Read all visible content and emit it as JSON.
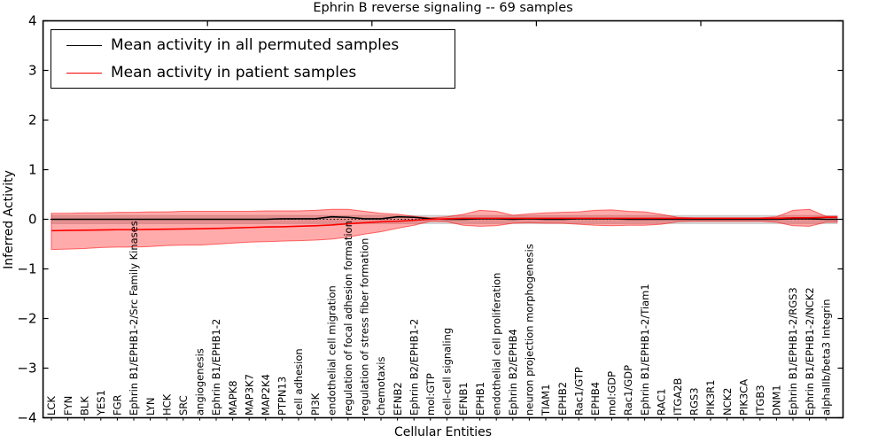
{
  "chart_data": {
    "type": "line",
    "title": "Ephrin B reverse signaling -- 69 samples",
    "xlabel": "Cellular Entities",
    "ylabel": "Inferred Activity",
    "ylim": [
      -4,
      4
    ],
    "yticks": [
      "4",
      "3",
      "2",
      "1",
      "0",
      "−1",
      "−2",
      "−3",
      "−4"
    ],
    "grid": false,
    "legend_position": "upper left",
    "zero_line_style": "dotted",
    "categories": [
      "LCK",
      "FYN",
      "BLK",
      "YES1",
      "FGR",
      "Ephrin B1/EPHB1-2/Src Family Kinases",
      "LYN",
      "HCK",
      "SRC",
      "angiogenesis",
      "Ephrin B1/EPHB1-2",
      "MAPK8",
      "MAP3K7",
      "MAP2K4",
      "PTPN13",
      "cell adhesion",
      "PI3K",
      "endothelial cell migration",
      "regulation of focal adhesion formation",
      "regulation of stress fiber formation",
      "chemotaxis",
      "EFNB2",
      "Ephrin B2/EPHB1-2",
      "mol:GTP",
      "cell-cell signaling",
      "EFNB1",
      "EPHB1",
      "endothelial cell proliferation",
      "Ephrin B2/EPHB4",
      "neuron projection morphogenesis",
      "TIAM1",
      "EPHB2",
      "Rac1/GTP",
      "EPHB4",
      "mol:GDP",
      "Rac1/GDP",
      "Ephrin B1/EPHB1-2/Tiam1",
      "RAC1",
      "ITGA2B",
      "RGS3",
      "PIK3R1",
      "NCK2",
      "PIK3CA",
      "ITGB3",
      "DNM1",
      "Ephrin B1/EPHB1-2/RGS3",
      "Ephrin B1/EPHB1-2/NCK2",
      "alphaIIb/beta3 Integrin"
    ],
    "series": [
      {
        "name": "Mean activity in all permuted samples",
        "color": "#000000",
        "values": [
          0,
          0,
          0,
          0,
          0,
          0,
          0,
          0,
          0,
          0,
          0,
          0,
          0,
          0,
          0.01,
          0.01,
          0.01,
          0.05,
          0.04,
          0.01,
          0.01,
          0.05,
          0.04,
          0.01,
          0,
          0,
          0.01,
          0.01,
          0,
          0.01,
          0,
          0,
          0.01,
          0.01,
          0.01,
          0,
          0,
          0,
          0,
          0,
          0,
          0,
          0,
          0,
          0,
          0.01,
          0.01,
          0
        ],
        "band": {
          "upper_const": 0.08,
          "lower_const": -0.09,
          "fill": "rgba(0,0,0,0.16)",
          "edge": "rgba(0,0,0,0.10)"
        }
      },
      {
        "name": "Mean activity in patient samples",
        "color": "#ff0000",
        "values": [
          -0.23,
          -0.225,
          -0.22,
          -0.215,
          -0.21,
          -0.21,
          -0.205,
          -0.2,
          -0.195,
          -0.19,
          -0.185,
          -0.175,
          -0.165,
          -0.155,
          -0.15,
          -0.14,
          -0.13,
          -0.115,
          -0.09,
          -0.07,
          -0.05,
          -0.04,
          -0.02,
          0,
          0.01,
          0.02,
          0.02,
          0.02,
          0.02,
          0.02,
          0.02,
          0.02,
          0.02,
          0.02,
          0.02,
          0.02,
          0.02,
          0.02,
          0.02,
          0.02,
          0.02,
          0.02,
          0.02,
          0.02,
          0.02,
          0.03,
          0.03,
          0.04
        ],
        "band": {
          "upper": [
            0.12,
            0.12,
            0.13,
            0.13,
            0.14,
            0.14,
            0.15,
            0.15,
            0.16,
            0.16,
            0.16,
            0.16,
            0.16,
            0.17,
            0.17,
            0.17,
            0.18,
            0.2,
            0.2,
            0.16,
            0.12,
            0.1,
            0.06,
            0.03,
            0.05,
            0.1,
            0.18,
            0.16,
            0.08,
            0.11,
            0.13,
            0.14,
            0.15,
            0.18,
            0.19,
            0.16,
            0.15,
            0.1,
            0.04,
            0.03,
            0.03,
            0.03,
            0.03,
            0.03,
            0.05,
            0.18,
            0.2,
            0.06
          ],
          "lower": [
            -0.61,
            -0.6,
            -0.59,
            -0.57,
            -0.56,
            -0.56,
            -0.55,
            -0.53,
            -0.52,
            -0.52,
            -0.5,
            -0.48,
            -0.46,
            -0.45,
            -0.44,
            -0.43,
            -0.42,
            -0.4,
            -0.36,
            -0.3,
            -0.25,
            -0.18,
            -0.12,
            -0.04,
            -0.05,
            -0.12,
            -0.14,
            -0.13,
            -0.08,
            -0.07,
            -0.08,
            -0.08,
            -0.1,
            -0.12,
            -0.13,
            -0.12,
            -0.12,
            -0.1,
            -0.05,
            -0.04,
            -0.04,
            -0.04,
            -0.04,
            -0.04,
            -0.06,
            -0.13,
            -0.14,
            -0.06
          ],
          "fill": "rgba(255,0,0,0.33)",
          "edge": "rgba(255,0,0,0.55)"
        }
      }
    ]
  }
}
